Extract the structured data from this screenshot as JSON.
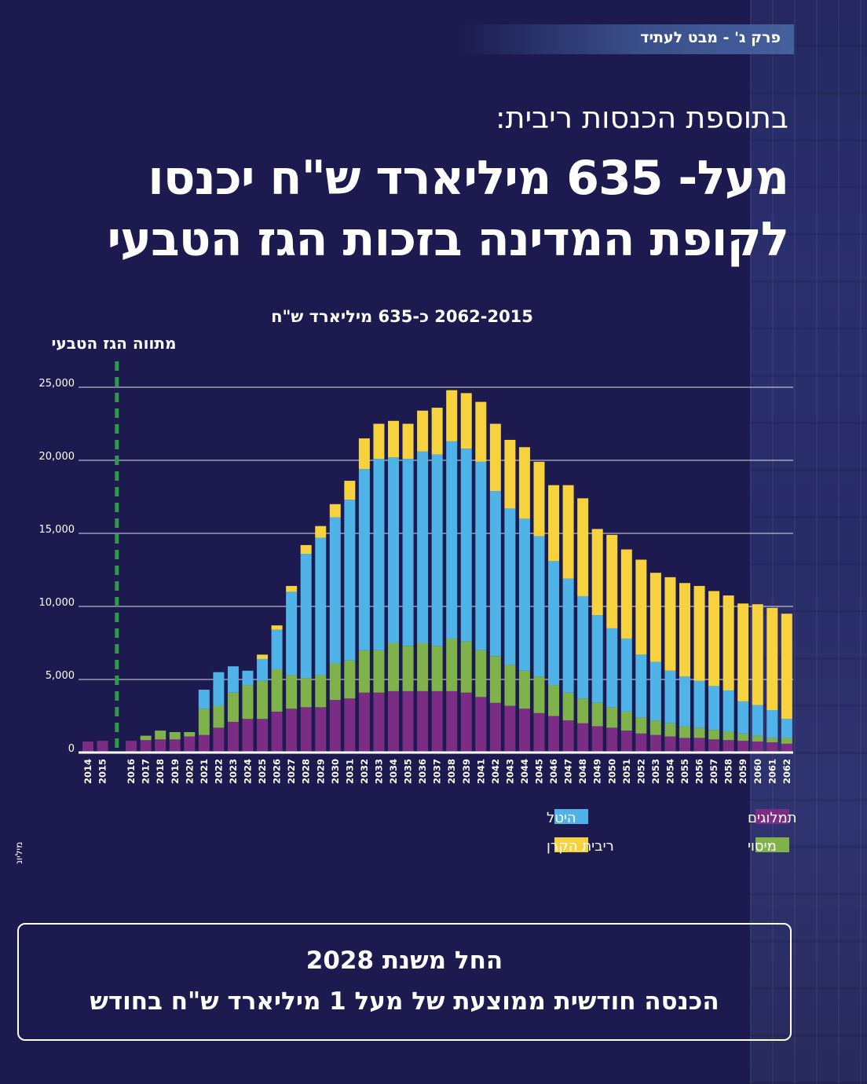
{
  "header": {
    "chapter": "פרק ג' - מבט לעתיד",
    "subtitle": "בתוספת הכנסות ריבית:",
    "headline_line1": "מעל- 635 מיליארד ש\"ח יכנסו",
    "headline_line2": "לקופת המדינה בזכות הגז הטבעי"
  },
  "chart_data": {
    "type": "bar",
    "stacked": true,
    "title": "2062-2015 כ-635 מיליארד ש\"ח",
    "ylabel": "מיליוני ש\"ח",
    "marker_label": "מתווה הגז הטבעי",
    "ylim": [
      0,
      25000
    ],
    "yticks": [
      "0",
      "5,000",
      "10,000",
      "15,000",
      "20,000",
      "25,000"
    ],
    "categories": [
      "2014",
      "2015",
      "2016",
      "2017",
      "2018",
      "2019",
      "2020",
      "2021",
      "2022",
      "2023",
      "2024",
      "2025",
      "2026",
      "2027",
      "2028",
      "2029",
      "2030",
      "2031",
      "2032",
      "2033",
      "2034",
      "2035",
      "2036",
      "2037",
      "2038",
      "2039",
      "2041",
      "2042",
      "2043",
      "2044",
      "2045",
      "2046",
      "2047",
      "2048",
      "2049",
      "2050",
      "2051",
      "2052",
      "2053",
      "2054",
      "2055",
      "2056",
      "2057",
      "2058",
      "2059",
      "2060",
      "2061",
      "2062"
    ],
    "series": [
      {
        "name": "תמלוגים",
        "color": "#7b2d86",
        "values": [
          750,
          800,
          800,
          850,
          900,
          900,
          1100,
          1200,
          1700,
          2100,
          2300,
          2300,
          2800,
          3000,
          3100,
          3100,
          3600,
          3700,
          4100,
          4100,
          4200,
          4200,
          4200,
          4200,
          4200,
          4100,
          3800,
          3400,
          3200,
          3000,
          2700,
          2500,
          2200,
          2000,
          1800,
          1700,
          1500,
          1300,
          1200,
          1100,
          1000,
          1000,
          900,
          850,
          800,
          750,
          700,
          600
        ]
      },
      {
        "name": "מיסוי",
        "color": "#7fb24a",
        "values": [
          0,
          0,
          0,
          300,
          600,
          500,
          300,
          1800,
          1500,
          2000,
          2300,
          2600,
          2900,
          2300,
          2000,
          2200,
          2500,
          2600,
          2900,
          2900,
          3300,
          3100,
          3300,
          3100,
          3600,
          3500,
          3200,
          3200,
          2800,
          2600,
          2500,
          2100,
          1900,
          1700,
          1600,
          1400,
          1300,
          1100,
          1000,
          900,
          800,
          700,
          650,
          600,
          500,
          400,
          300,
          400
        ]
      },
      {
        "name": "היטל",
        "color": "#4fb3e8",
        "values": [
          0,
          0,
          0,
          0,
          0,
          0,
          0,
          1300,
          2300,
          1800,
          1000,
          1500,
          2700,
          5700,
          8500,
          9400,
          10000,
          11000,
          12400,
          13100,
          12700,
          12800,
          13100,
          13100,
          13500,
          13200,
          12900,
          11300,
          10700,
          10400,
          9600,
          8500,
          7800,
          7000,
          6000,
          5400,
          5000,
          4300,
          4000,
          3600,
          3400,
          3200,
          3000,
          2800,
          2200,
          2100,
          1900,
          1300
        ]
      },
      {
        "name": "ריבית הקרן",
        "color": "#f5d23e",
        "values": [
          0,
          0,
          0,
          0,
          0,
          0,
          0,
          0,
          0,
          0,
          0,
          300,
          300,
          400,
          600,
          800,
          900,
          1300,
          2100,
          2400,
          2500,
          2400,
          2800,
          3200,
          3500,
          3800,
          4100,
          4600,
          4700,
          4900,
          5100,
          5200,
          6400,
          6700,
          5900,
          6400,
          6100,
          6500,
          6100,
          6400,
          6400,
          6500,
          6500,
          6500,
          6700,
          6900,
          7000,
          7200
        ]
      }
    ],
    "legend": {
      "levy": "היטל",
      "royalties": "תמלוגים",
      "interest": "ריבית הקרן",
      "tax": "מיסוי"
    }
  },
  "info_box": {
    "line1": "החל משנת 2028",
    "line2": "הכנסה חודשית ממוצעת של מעל 1 מיליארד ש\"ח בחודש"
  }
}
